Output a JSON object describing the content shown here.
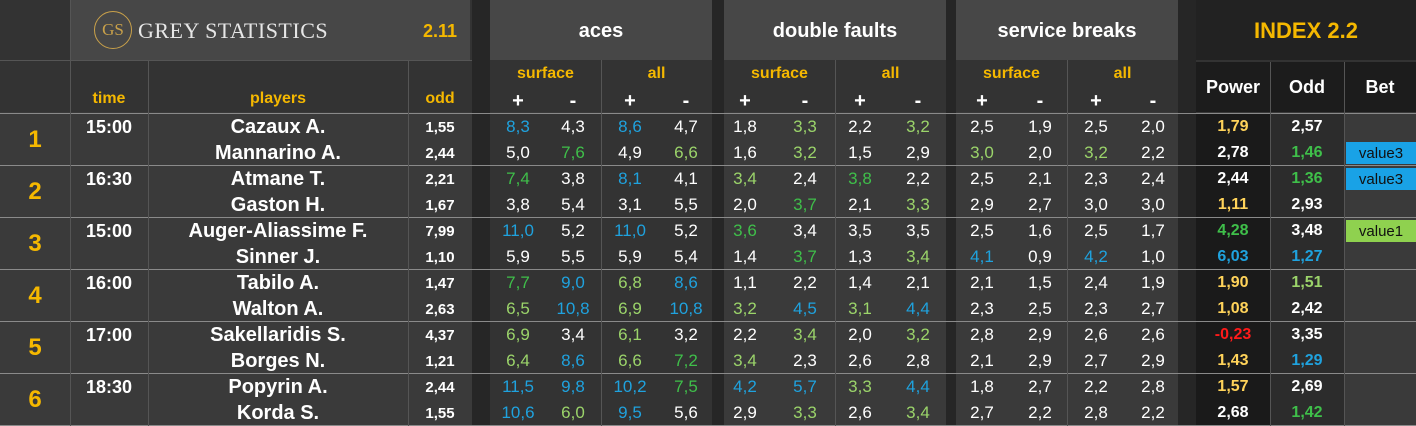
{
  "colors": {
    "gold": "#f5b800",
    "white": "#ffffff",
    "blue": "#1fa2de",
    "green": "#3fbf4a",
    "lightgreen": "#9bd46a",
    "red": "#ff1a1a",
    "yellow": "#ffd35a"
  },
  "header": {
    "logo_mark": "GS",
    "logo_text": "GREY STATISTICS",
    "version": "2.11",
    "aces": "aces",
    "double_faults": "double faults",
    "service_breaks": "service breaks",
    "index_title": "INDEX 2.2",
    "time": "time",
    "players": "players",
    "odd": "odd",
    "surface": "surface",
    "all": "all",
    "plus": "+",
    "minus": "-",
    "power": "Power",
    "index_odd": "Odd",
    "bet": "Bet"
  },
  "matches": [
    {
      "num": "1",
      "time": "15:00",
      "players": [
        {
          "name": "Cazaux A.",
          "odd": "1,55",
          "stats": [
            [
              "8,3",
              "blue"
            ],
            [
              "4,3",
              "white"
            ],
            [
              "8,6",
              "blue"
            ],
            [
              "4,7",
              "white"
            ],
            [
              "1,8",
              "white"
            ],
            [
              "3,3",
              "lightgreen"
            ],
            [
              "2,2",
              "white"
            ],
            [
              "3,2",
              "lightgreen"
            ],
            [
              "2,5",
              "white"
            ],
            [
              "1,9",
              "white"
            ],
            [
              "2,5",
              "white"
            ],
            [
              "2,0",
              "white"
            ]
          ],
          "power": [
            "1,79",
            "yellow"
          ],
          "iodd": [
            "2,57",
            "white"
          ],
          "bet": ""
        },
        {
          "name": "Mannarino A.",
          "odd": "2,44",
          "stats": [
            [
              "5,0",
              "white"
            ],
            [
              "7,6",
              "green"
            ],
            [
              "4,9",
              "white"
            ],
            [
              "6,6",
              "lightgreen"
            ],
            [
              "1,6",
              "white"
            ],
            [
              "3,2",
              "lightgreen"
            ],
            [
              "1,5",
              "white"
            ],
            [
              "2,9",
              "white"
            ],
            [
              "3,0",
              "lightgreen"
            ],
            [
              "2,0",
              "white"
            ],
            [
              "3,2",
              "lightgreen"
            ],
            [
              "2,2",
              "white"
            ]
          ],
          "power": [
            "2,78",
            "white"
          ],
          "iodd": [
            "1,46",
            "green"
          ],
          "bet": "value3"
        }
      ]
    },
    {
      "num": "2",
      "time": "16:30",
      "players": [
        {
          "name": "Atmane T.",
          "odd": "2,21",
          "stats": [
            [
              "7,4",
              "green"
            ],
            [
              "3,8",
              "white"
            ],
            [
              "8,1",
              "blue"
            ],
            [
              "4,1",
              "white"
            ],
            [
              "3,4",
              "lightgreen"
            ],
            [
              "2,4",
              "white"
            ],
            [
              "3,8",
              "green"
            ],
            [
              "2,2",
              "white"
            ],
            [
              "2,5",
              "white"
            ],
            [
              "2,1",
              "white"
            ],
            [
              "2,3",
              "white"
            ],
            [
              "2,4",
              "white"
            ]
          ],
          "power": [
            "2,44",
            "white"
          ],
          "iodd": [
            "1,36",
            "green"
          ],
          "bet": "value3"
        },
        {
          "name": "Gaston H.",
          "odd": "1,67",
          "stats": [
            [
              "3,8",
              "white"
            ],
            [
              "5,4",
              "white"
            ],
            [
              "3,1",
              "white"
            ],
            [
              "5,5",
              "white"
            ],
            [
              "2,0",
              "white"
            ],
            [
              "3,7",
              "green"
            ],
            [
              "2,1",
              "white"
            ],
            [
              "3,3",
              "lightgreen"
            ],
            [
              "2,9",
              "white"
            ],
            [
              "2,7",
              "white"
            ],
            [
              "3,0",
              "white"
            ],
            [
              "3,0",
              "white"
            ]
          ],
          "power": [
            "1,11",
            "yellow"
          ],
          "iodd": [
            "2,93",
            "white"
          ],
          "bet": ""
        }
      ]
    },
    {
      "num": "3",
      "time": "15:00",
      "players": [
        {
          "name": "Auger-Aliassime F.",
          "odd": "7,99",
          "stats": [
            [
              "11,0",
              "blue"
            ],
            [
              "5,2",
              "white"
            ],
            [
              "11,0",
              "blue"
            ],
            [
              "5,2",
              "white"
            ],
            [
              "3,6",
              "green"
            ],
            [
              "3,4",
              "white"
            ],
            [
              "3,5",
              "white"
            ],
            [
              "3,5",
              "white"
            ],
            [
              "2,5",
              "white"
            ],
            [
              "1,6",
              "white"
            ],
            [
              "2,5",
              "white"
            ],
            [
              "1,7",
              "white"
            ]
          ],
          "power": [
            "4,28",
            "green"
          ],
          "iodd": [
            "3,48",
            "white"
          ],
          "bet": "value1"
        },
        {
          "name": "Sinner J.",
          "odd": "1,10",
          "stats": [
            [
              "5,9",
              "white"
            ],
            [
              "5,5",
              "white"
            ],
            [
              "5,9",
              "white"
            ],
            [
              "5,4",
              "white"
            ],
            [
              "1,4",
              "white"
            ],
            [
              "3,7",
              "green"
            ],
            [
              "1,3",
              "white"
            ],
            [
              "3,4",
              "lightgreen"
            ],
            [
              "4,1",
              "blue"
            ],
            [
              "0,9",
              "white"
            ],
            [
              "4,2",
              "blue"
            ],
            [
              "1,0",
              "white"
            ]
          ],
          "power": [
            "6,03",
            "blue"
          ],
          "iodd": [
            "1,27",
            "blue"
          ],
          "bet": ""
        }
      ]
    },
    {
      "num": "4",
      "time": "16:00",
      "players": [
        {
          "name": "Tabilo A.",
          "odd": "1,47",
          "stats": [
            [
              "7,7",
              "green"
            ],
            [
              "9,0",
              "blue"
            ],
            [
              "6,8",
              "lightgreen"
            ],
            [
              "8,6",
              "blue"
            ],
            [
              "1,1",
              "white"
            ],
            [
              "2,2",
              "white"
            ],
            [
              "1,4",
              "white"
            ],
            [
              "2,1",
              "white"
            ],
            [
              "2,1",
              "white"
            ],
            [
              "1,5",
              "white"
            ],
            [
              "2,4",
              "white"
            ],
            [
              "1,9",
              "white"
            ]
          ],
          "power": [
            "1,90",
            "yellow"
          ],
          "iodd": [
            "1,51",
            "lightgreen"
          ],
          "bet": ""
        },
        {
          "name": "Walton A.",
          "odd": "2,63",
          "stats": [
            [
              "6,5",
              "lightgreen"
            ],
            [
              "10,8",
              "blue"
            ],
            [
              "6,9",
              "lightgreen"
            ],
            [
              "10,8",
              "blue"
            ],
            [
              "3,2",
              "lightgreen"
            ],
            [
              "4,5",
              "blue"
            ],
            [
              "3,1",
              "lightgreen"
            ],
            [
              "4,4",
              "blue"
            ],
            [
              "2,3",
              "white"
            ],
            [
              "2,5",
              "white"
            ],
            [
              "2,3",
              "white"
            ],
            [
              "2,7",
              "white"
            ]
          ],
          "power": [
            "1,08",
            "yellow"
          ],
          "iodd": [
            "2,42",
            "white"
          ],
          "bet": ""
        }
      ]
    },
    {
      "num": "5",
      "time": "17:00",
      "players": [
        {
          "name": "Sakellaridis S.",
          "odd": "4,37",
          "stats": [
            [
              "6,9",
              "lightgreen"
            ],
            [
              "3,4",
              "white"
            ],
            [
              "6,1",
              "lightgreen"
            ],
            [
              "3,2",
              "white"
            ],
            [
              "2,2",
              "white"
            ],
            [
              "3,4",
              "lightgreen"
            ],
            [
              "2,0",
              "white"
            ],
            [
              "3,2",
              "lightgreen"
            ],
            [
              "2,8",
              "white"
            ],
            [
              "2,9",
              "white"
            ],
            [
              "2,6",
              "white"
            ],
            [
              "2,6",
              "white"
            ]
          ],
          "power": [
            "-0,23",
            "red"
          ],
          "iodd": [
            "3,35",
            "white"
          ],
          "bet": ""
        },
        {
          "name": "Borges N.",
          "odd": "1,21",
          "stats": [
            [
              "6,4",
              "lightgreen"
            ],
            [
              "8,6",
              "blue"
            ],
            [
              "6,6",
              "lightgreen"
            ],
            [
              "7,2",
              "green"
            ],
            [
              "3,4",
              "lightgreen"
            ],
            [
              "2,3",
              "white"
            ],
            [
              "2,6",
              "white"
            ],
            [
              "2,8",
              "white"
            ],
            [
              "2,1",
              "white"
            ],
            [
              "2,9",
              "white"
            ],
            [
              "2,7",
              "white"
            ],
            [
              "2,9",
              "white"
            ]
          ],
          "power": [
            "1,43",
            "yellow"
          ],
          "iodd": [
            "1,29",
            "blue"
          ],
          "bet": ""
        }
      ]
    },
    {
      "num": "6",
      "time": "18:30",
      "players": [
        {
          "name": "Popyrin A.",
          "odd": "2,44",
          "stats": [
            [
              "11,5",
              "blue"
            ],
            [
              "9,8",
              "blue"
            ],
            [
              "10,2",
              "blue"
            ],
            [
              "7,5",
              "green"
            ],
            [
              "4,2",
              "blue"
            ],
            [
              "5,7",
              "blue"
            ],
            [
              "3,3",
              "lightgreen"
            ],
            [
              "4,4",
              "blue"
            ],
            [
              "1,8",
              "white"
            ],
            [
              "2,7",
              "white"
            ],
            [
              "2,2",
              "white"
            ],
            [
              "2,8",
              "white"
            ]
          ],
          "power": [
            "1,57",
            "yellow"
          ],
          "iodd": [
            "2,69",
            "white"
          ],
          "bet": ""
        },
        {
          "name": "Korda S.",
          "odd": "1,55",
          "stats": [
            [
              "10,6",
              "blue"
            ],
            [
              "6,0",
              "lightgreen"
            ],
            [
              "9,5",
              "blue"
            ],
            [
              "5,6",
              "white"
            ],
            [
              "2,9",
              "white"
            ],
            [
              "3,3",
              "lightgreen"
            ],
            [
              "2,6",
              "white"
            ],
            [
              "3,4",
              "lightgreen"
            ],
            [
              "2,7",
              "white"
            ],
            [
              "2,2",
              "white"
            ],
            [
              "2,8",
              "white"
            ],
            [
              "2,2",
              "white"
            ]
          ],
          "power": [
            "2,68",
            "white"
          ],
          "iodd": [
            "1,42",
            "green"
          ],
          "bet": ""
        }
      ]
    }
  ]
}
